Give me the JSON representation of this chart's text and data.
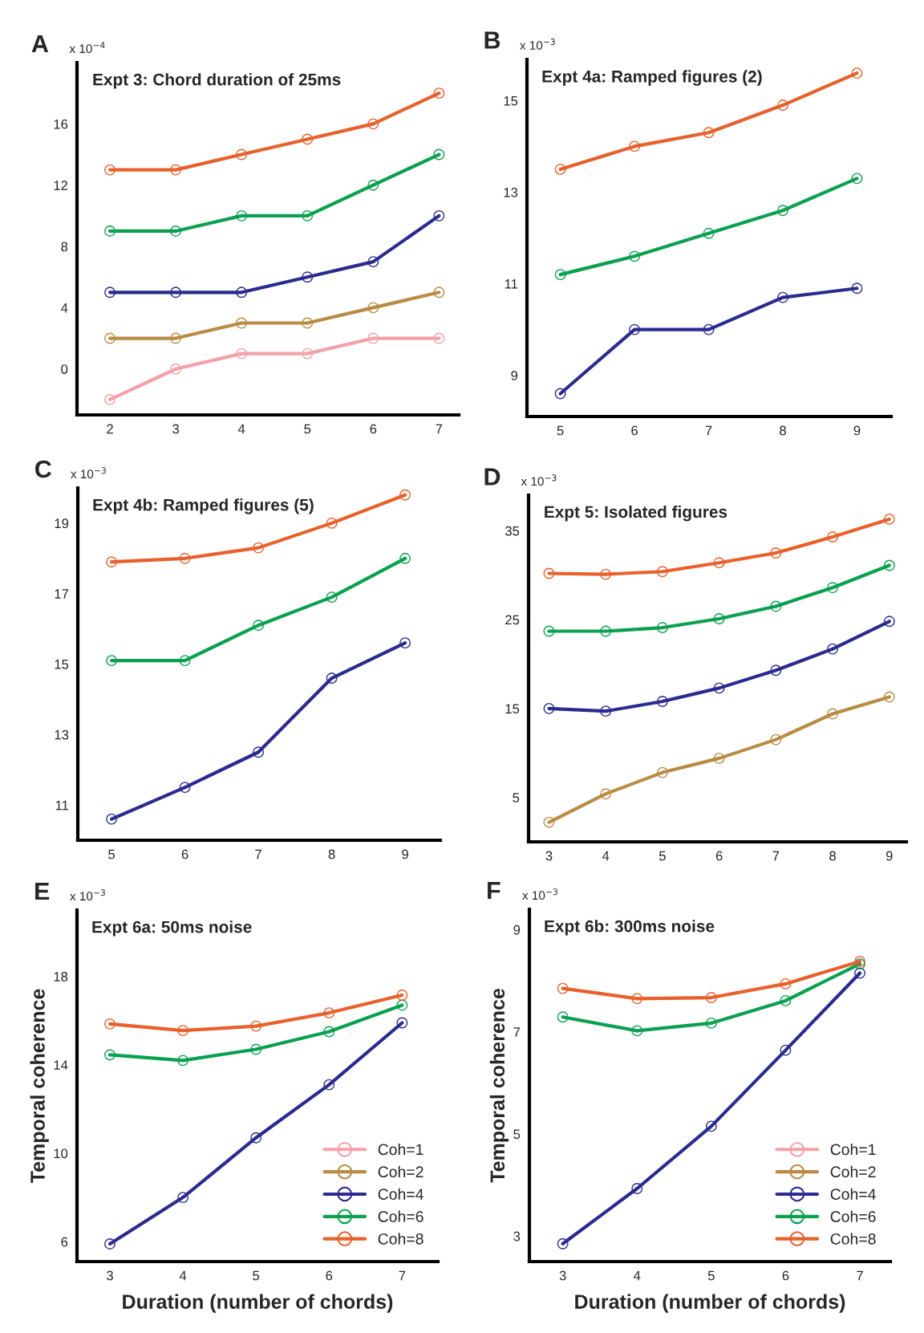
{
  "chart_data": [
    {
      "type": "line",
      "title": "Expt 3: Chord duration of 25ms",
      "annotations": [
        "A",
        "x 10$^{−4}$"
      ],
      "marker": "circle",
      "x": [
        2,
        3,
        4,
        5,
        6,
        7
      ],
      "xlim": [
        1.5,
        7.3
      ],
      "xticks": [
        2,
        3,
        4,
        5,
        6,
        7
      ],
      "ylim": [
        -3,
        20
      ],
      "yticks": [
        0,
        4,
        8,
        12,
        16
      ],
      "series": [
        {
          "color": "#f4a0a8",
          "values": [
            -2,
            0,
            1,
            1,
            2,
            2
          ]
        },
        {
          "color": "#b98c44",
          "values": [
            2,
            2,
            3,
            3,
            4,
            5
          ]
        },
        {
          "color": "#2b2b8f",
          "values": [
            5,
            5,
            5,
            6,
            7,
            10
          ]
        },
        {
          "color": "#0aa050",
          "values": [
            9,
            9,
            10,
            10,
            12,
            14
          ]
        },
        {
          "color": "#e8602c",
          "values": [
            13,
            13,
            14,
            15,
            16,
            18
          ]
        }
      ]
    },
    {
      "type": "line",
      "title": "Expt 4a: Ramped figures (2)",
      "annotations": [
        "B",
        "x 10$^{−3}$"
      ],
      "marker": "circle",
      "x": [
        5,
        6,
        7,
        8,
        9
      ],
      "xlim": [
        4.55,
        9.46
      ],
      "xticks": [
        5,
        6,
        7,
        8,
        9
      ],
      "ylim": [
        8.1,
        15.9
      ],
      "yticks": [
        9,
        11,
        13,
        15
      ],
      "series": [
        {
          "color": "#2b2b8f",
          "values": [
            8.6,
            10.0,
            10.0,
            10.7,
            10.9
          ]
        },
        {
          "color": "#0aa050",
          "values": [
            11.2,
            11.6,
            12.1,
            12.6,
            13.3
          ]
        },
        {
          "color": "#e8602c",
          "values": [
            13.5,
            14.0,
            14.3,
            14.9,
            15.6
          ]
        }
      ]
    },
    {
      "type": "line",
      "title": "Expt 4b: Ramped figures (5)",
      "annotations": [
        "C",
        "x 10$^{−3}$"
      ],
      "marker": "circle",
      "x": [
        5,
        6,
        7,
        8,
        9
      ],
      "xlim": [
        4.54,
        9.48
      ],
      "xticks": [
        5,
        6,
        7,
        8,
        9
      ],
      "ylim": [
        10,
        20
      ],
      "yticks": [
        11,
        13,
        15,
        17,
        19
      ],
      "series": [
        {
          "color": "#2b2b8f",
          "values": [
            10.6,
            11.5,
            12.5,
            14.6,
            15.6
          ]
        },
        {
          "color": "#0aa050",
          "values": [
            15.1,
            15.1,
            16.1,
            16.9,
            18.0
          ]
        },
        {
          "color": "#e8602c",
          "values": [
            17.9,
            18.0,
            18.3,
            19.0,
            19.8
          ]
        }
      ]
    },
    {
      "type": "line",
      "title": "Expt 5: Isolated figures",
      "annotations": [
        "D",
        "x 10$^{−3}$"
      ],
      "marker": "circle",
      "x": [
        3,
        4,
        5,
        6,
        7,
        8,
        9
      ],
      "xlim": [
        2.64,
        9.3
      ],
      "xticks": [
        3,
        4,
        5,
        6,
        7,
        8,
        9
      ],
      "ylim": [
        0,
        39
      ],
      "yticks": [
        5,
        15,
        25,
        35
      ],
      "series": [
        {
          "color": "#b98c44",
          "values": [
            2.2,
            5.4,
            7.8,
            9.4,
            11.5,
            14.4,
            16.3
          ]
        },
        {
          "color": "#2b2b8f",
          "values": [
            15.0,
            14.7,
            15.8,
            17.3,
            19.3,
            21.7,
            24.8
          ]
        },
        {
          "color": "#0aa050",
          "values": [
            23.7,
            23.7,
            24.1,
            25.1,
            26.5,
            28.6,
            31.1
          ]
        },
        {
          "color": "#e8602c",
          "values": [
            30.2,
            30.1,
            30.4,
            31.4,
            32.5,
            34.3,
            36.3
          ]
        }
      ]
    },
    {
      "type": "line",
      "title": "Expt 6a: 50ms noise",
      "annotations": [
        "E",
        "x 10$^{−3}$"
      ],
      "xlabel": "Duration (number of chords)",
      "ylabel": "Temporal coherence",
      "marker": "circle",
      "legend": "bottom right",
      "x": [
        3,
        4,
        5,
        6,
        7
      ],
      "xlim": [
        2.55,
        7.49
      ],
      "xticks": [
        3,
        4,
        5,
        6,
        7
      ],
      "ylim": [
        5.1,
        21
      ],
      "yticks": [
        6,
        10,
        14,
        18
      ],
      "series": [
        {
          "name": "Coh=1",
          "color": "#f4a0a8",
          "values": [
            null,
            null,
            null,
            null,
            null
          ]
        },
        {
          "name": "Coh=2",
          "color": "#b98c44",
          "values": [
            null,
            null,
            null,
            null,
            null
          ]
        },
        {
          "name": "Coh=4",
          "color": "#2b2b8f",
          "values": [
            5.9,
            8.0,
            10.7,
            13.1,
            15.9
          ]
        },
        {
          "name": "Coh=6",
          "color": "#0aa050",
          "values": [
            14.45,
            14.2,
            14.7,
            15.5,
            16.7
          ]
        },
        {
          "name": "Coh=8",
          "color": "#e8602c",
          "values": [
            15.85,
            15.55,
            15.75,
            16.35,
            17.15
          ]
        }
      ]
    },
    {
      "type": "line",
      "title": "Expt 6b: 300ms noise",
      "annotations": [
        "F",
        "x 10$^{−3}$"
      ],
      "xlabel": "Duration (number of chords)",
      "ylabel": "Temporal coherence",
      "marker": "circle",
      "legend": "bottom right",
      "x": [
        3,
        4,
        5,
        6,
        7
      ],
      "xlim": [
        2.55,
        7.41
      ],
      "xticks": [
        3,
        4,
        5,
        6,
        7
      ],
      "ylim": [
        2.5,
        9.4
      ],
      "yticks": [
        3,
        5,
        7,
        9
      ],
      "series": [
        {
          "name": "Coh=1",
          "color": "#f4a0a8",
          "values": [
            null,
            null,
            null,
            null,
            null
          ]
        },
        {
          "name": "Coh=2",
          "color": "#b98c44",
          "values": [
            null,
            null,
            null,
            null,
            null
          ]
        },
        {
          "name": "Coh=4",
          "color": "#2b2b8f",
          "values": [
            2.85,
            3.93,
            5.15,
            6.64,
            8.15
          ]
        },
        {
          "name": "Coh=6",
          "color": "#0aa050",
          "values": [
            7.29,
            7.02,
            7.17,
            7.61,
            8.33
          ]
        },
        {
          "name": "Coh=8",
          "color": "#e8602c",
          "values": [
            7.85,
            7.65,
            7.67,
            7.94,
            8.38
          ]
        }
      ]
    }
  ]
}
